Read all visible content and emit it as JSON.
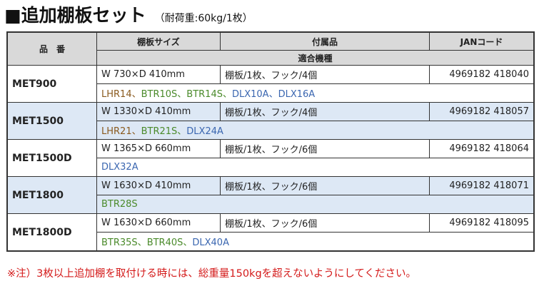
{
  "header": {
    "title": "■追加棚板セット",
    "note": "（耐荷重:60kg/1枚）"
  },
  "table": {
    "columns": [
      "品　番",
      "棚板サイズ",
      "付属品",
      "JANコード",
      "適合機種"
    ],
    "rows": [
      {
        "code": "MET900",
        "size": "W 730×D 410mm",
        "accessory": "棚板/1枚、フック/4個",
        "jan": "4969182 418040",
        "models": [
          {
            "text": "LHR14、",
            "color": "#8a5a1e"
          },
          {
            "text": "BTR10S、",
            "color": "#4a8a2a"
          },
          {
            "text": "BTR14S、",
            "color": "#4a8a2a"
          },
          {
            "text": "DLX10A、",
            "color": "#3a66b0"
          },
          {
            "text": "DLX16A",
            "color": "#3a66b0"
          }
        ]
      },
      {
        "code": "MET1500",
        "size": "W 1330×D 410mm",
        "accessory": "棚板/1枚、フック/4個",
        "jan": "4969182 418057",
        "models": [
          {
            "text": "LHR21、",
            "color": "#8a5a1e"
          },
          {
            "text": "BTR21S、",
            "color": "#4a8a2a"
          },
          {
            "text": "DLX24A",
            "color": "#3a66b0"
          }
        ]
      },
      {
        "code": "MET1500D",
        "size": "W 1365×D 660mm",
        "accessory": "棚板/1枚、フック/6個",
        "jan": "4969182 418064",
        "models": [
          {
            "text": "DLX32A",
            "color": "#3a66b0"
          }
        ]
      },
      {
        "code": "MET1800",
        "size": "W 1630×D 410mm",
        "accessory": "棚板/1枚、フック/6個",
        "jan": "4969182 418071",
        "models": [
          {
            "text": "BTR28S",
            "color": "#4a8a2a"
          }
        ]
      },
      {
        "code": "MET1800D",
        "size": "W 1630×D 660mm",
        "accessory": "棚板/1枚、フック/6個",
        "jan": "4969182 418095",
        "models": [
          {
            "text": "BTR35S、",
            "color": "#4a8a2a"
          },
          {
            "text": "BTR40S、",
            "color": "#4a8a2a"
          },
          {
            "text": "DLX40A",
            "color": "#3a66b0"
          }
        ]
      }
    ]
  },
  "footnote": "※注）3枚以上追加棚を取付ける時には、総重量150kgを超えないようにしてください。"
}
